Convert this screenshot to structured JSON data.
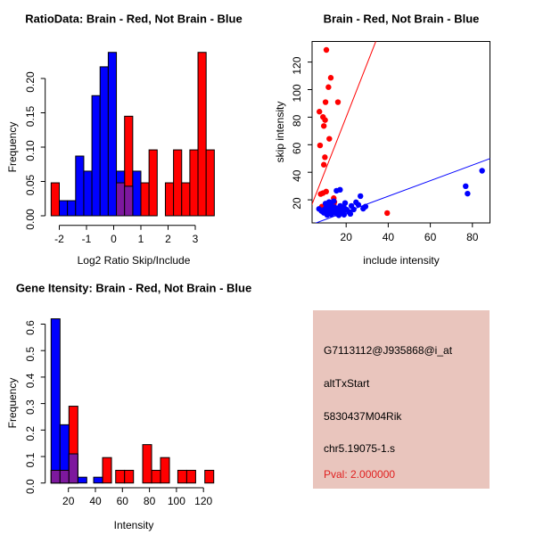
{
  "colors": {
    "red": "#ff0000",
    "blue": "#0000ff",
    "overlap_purple": "#7d189e",
    "info_bg": "#e9c5bd",
    "pval_red": "#e02020",
    "axis_black": "#000000"
  },
  "chart_data": [
    {
      "id": "ratio_hist",
      "type": "bar",
      "title": "RatioData: Brain - Red, Not Brain - Blue",
      "xlabel": "Log2 Ratio Skip/Include",
      "ylabel": "Frequency",
      "x_ticks": [
        -2,
        -1,
        0,
        1,
        2,
        3
      ],
      "y_ticks": [
        "0.00",
        "0.05",
        "0.10",
        "0.15",
        "0.20"
      ],
      "y_tick_values": [
        0,
        0.05,
        0.1,
        0.15,
        0.2
      ],
      "xlim": [
        -2.3,
        3.7
      ],
      "ylim": [
        0,
        0.24
      ],
      "bin_width": 0.3,
      "legend_note": "Brain - Red, Not Brain - Blue, overlap - purple",
      "series": [
        {
          "name": "Brain (red)",
          "color": "red",
          "bins": [
            {
              "x0": -2.3,
              "h": 0.048
            },
            {
              "x0": 0.1,
              "h": 0.048
            },
            {
              "x0": 0.4,
              "h": 0.145
            },
            {
              "x0": 1.0,
              "h": 0.048
            },
            {
              "x0": 1.3,
              "h": 0.096
            },
            {
              "x0": 1.9,
              "h": 0.048
            },
            {
              "x0": 2.2,
              "h": 0.096
            },
            {
              "x0": 2.5,
              "h": 0.048
            },
            {
              "x0": 2.8,
              "h": 0.096
            },
            {
              "x0": 3.1,
              "h": 0.238
            },
            {
              "x0": 3.4,
              "h": 0.096
            }
          ]
        },
        {
          "name": "Not Brain (blue)",
          "color": "blue",
          "bins": [
            {
              "x0": -2.0,
              "h": 0.022
            },
            {
              "x0": -1.7,
              "h": 0.022
            },
            {
              "x0": -1.4,
              "h": 0.087
            },
            {
              "x0": -1.1,
              "h": 0.065
            },
            {
              "x0": -0.8,
              "h": 0.175
            },
            {
              "x0": -0.5,
              "h": 0.217
            },
            {
              "x0": -0.2,
              "h": 0.238
            },
            {
              "x0": 0.1,
              "h": 0.065
            },
            {
              "x0": 0.4,
              "h": 0.043
            },
            {
              "x0": 0.7,
              "h": 0.065
            }
          ]
        },
        {
          "name": "overlap",
          "color": "overlap_purple",
          "bins": [
            {
              "x0": 0.1,
              "h": 0.048
            },
            {
              "x0": 0.4,
              "h": 0.043
            }
          ]
        }
      ]
    },
    {
      "id": "intensity_scatter",
      "type": "scatter",
      "title": "Brain - Red, Not Brain - Blue",
      "xlabel": "include intensity",
      "ylabel": "skip intensity",
      "x_ticks": [
        20,
        40,
        60,
        80
      ],
      "y_ticks": [
        20,
        40,
        60,
        80,
        100,
        120
      ],
      "xlim": [
        3,
        90
      ],
      "ylim": [
        3,
        135
      ],
      "series": [
        {
          "name": "Brain (red)",
          "color": "red",
          "points": [
            [
              10.6,
              128.8
            ],
            [
              12.7,
              108.6
            ],
            [
              11.6,
              101.8
            ],
            [
              10.2,
              90.9
            ],
            [
              16.1,
              90.9
            ],
            [
              7.3,
              84.0
            ],
            [
              9.0,
              80.1
            ],
            [
              10.0,
              77.9
            ],
            [
              9.4,
              73.6
            ],
            [
              12.0,
              64.3
            ],
            [
              7.6,
              59.5
            ],
            [
              9.9,
              50.9
            ],
            [
              9.4,
              45.5
            ],
            [
              10.5,
              26.0
            ],
            [
              9.0,
              24.9
            ],
            [
              7.9,
              24.2
            ],
            [
              14.1,
              21.2
            ],
            [
              14.4,
              18.4
            ],
            [
              14.1,
              16.2
            ],
            [
              8.5,
              15.1
            ],
            [
              39.5,
              10.4
            ]
          ]
        },
        {
          "name": "Not Brain (blue)",
          "color": "blue",
          "points": [
            [
              84.6,
              41.1
            ],
            [
              76.8,
              29.9
            ],
            [
              77.7,
              24.5
            ],
            [
              26.8,
              22.7
            ],
            [
              24.7,
              18.2
            ],
            [
              25.8,
              16.4
            ],
            [
              29.2,
              15.1
            ],
            [
              28.1,
              13.6
            ],
            [
              15.4,
              26.6
            ],
            [
              17.1,
              27.3
            ],
            [
              19.5,
              17.7
            ],
            [
              14.1,
              19.0
            ],
            [
              11.9,
              18.4
            ],
            [
              10.2,
              17.3
            ],
            [
              7.1,
              13.4
            ],
            [
              8.3,
              11.9
            ],
            [
              9.4,
              10.6
            ],
            [
              9.7,
              13.0
            ],
            [
              10.6,
              15.1
            ],
            [
              10.9,
              12.1
            ],
            [
              11.6,
              10.4
            ],
            [
              12.3,
              13.4
            ],
            [
              12.7,
              16.0
            ],
            [
              13.3,
              12.5
            ],
            [
              13.9,
              10.8
            ],
            [
              14.4,
              14.7
            ],
            [
              15.0,
              11.9
            ],
            [
              15.5,
              9.9
            ],
            [
              16.1,
              13.8
            ],
            [
              16.6,
              11.5
            ],
            [
              17.2,
              15.6
            ],
            [
              17.8,
              13.0
            ],
            [
              18.4,
              10.6
            ],
            [
              18.9,
              14.7
            ],
            [
              20.3,
              12.8
            ],
            [
              21.3,
              11.2
            ],
            [
              22.5,
              15.6
            ],
            [
              23.6,
              13.0
            ],
            [
              22.0,
              9.8
            ],
            [
              13.0,
              9.5
            ],
            [
              11.0,
              9.0
            ],
            [
              16.5,
              8.8
            ],
            [
              19.0,
              9.2
            ]
          ]
        }
      ],
      "lines": [
        {
          "name": "brain fit",
          "color": "red",
          "slope": 3.9,
          "intercept": 2
        },
        {
          "name": "not brain fit",
          "color": "blue",
          "slope": 0.565,
          "intercept": 0
        }
      ]
    },
    {
      "id": "gene_hist",
      "type": "bar",
      "title": "Gene Itensity: Brain - Red, Not Brain - Blue",
      "xlabel": "Intensity",
      "ylabel": "Frequency",
      "x_ticks": [
        20,
        40,
        60,
        80,
        100,
        120
      ],
      "y_ticks": [
        "0.0",
        "0.1",
        "0.2",
        "0.3",
        "0.4",
        "0.5",
        "0.6"
      ],
      "y_tick_values": [
        0,
        0.1,
        0.2,
        0.3,
        0.4,
        0.5,
        0.6
      ],
      "xlim": [
        5,
        130
      ],
      "ylim": [
        0,
        0.63
      ],
      "bin_width": 6.6,
      "legend_note": "Brain - Red, Not Brain - Blue, overlap - purple",
      "series": [
        {
          "name": "Brain (red)",
          "color": "red",
          "bins": [
            {
              "x0": 7.2,
              "h": 0.048
            },
            {
              "x0": 13.8,
              "h": 0.048
            },
            {
              "x0": 20.4,
              "h": 0.29
            },
            {
              "x0": 45.3,
              "h": 0.096
            },
            {
              "x0": 55.0,
              "h": 0.048
            },
            {
              "x0": 61.6,
              "h": 0.048
            },
            {
              "x0": 75.0,
              "h": 0.145
            },
            {
              "x0": 81.6,
              "h": 0.048
            },
            {
              "x0": 88.2,
              "h": 0.096
            },
            {
              "x0": 101.0,
              "h": 0.048
            },
            {
              "x0": 107.6,
              "h": 0.048
            },
            {
              "x0": 121.0,
              "h": 0.048
            }
          ]
        },
        {
          "name": "Not Brain (blue)",
          "color": "blue",
          "bins": [
            {
              "x0": 7.2,
              "h": 0.62
            },
            {
              "x0": 13.8,
              "h": 0.22
            },
            {
              "x0": 20.4,
              "h": 0.11
            },
            {
              "x0": 27.0,
              "h": 0.022
            },
            {
              "x0": 38.7,
              "h": 0.022
            }
          ]
        },
        {
          "name": "overlap",
          "color": "overlap_purple",
          "bins": [
            {
              "x0": 7.2,
              "h": 0.048
            },
            {
              "x0": 13.8,
              "h": 0.048
            },
            {
              "x0": 20.4,
              "h": 0.11
            }
          ]
        }
      ]
    }
  ],
  "info_panel": {
    "lines": [
      "G7113112@J935868@i_at",
      "altTxStart",
      "5830437M04Rik",
      "chr5.19075-1.s"
    ],
    "pval": "Pval: 2.000000"
  }
}
